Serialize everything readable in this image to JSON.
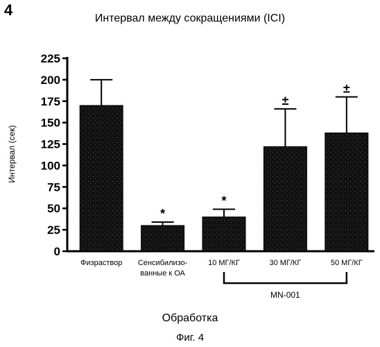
{
  "figure": {
    "panel_number": "4",
    "caption": "Фиг. 4"
  },
  "chart_data": {
    "type": "bar",
    "title": "Интервал между сокращениями (ICI)",
    "xlabel": "Обработка",
    "ylabel": "Интервал (сек)",
    "ylim": [
      0,
      225
    ],
    "yticks": [
      0,
      25,
      50,
      75,
      100,
      125,
      150,
      175,
      200,
      225
    ],
    "categories": [
      [
        "Физраствор"
      ],
      [
        "Сенсибилизо-",
        "ванные к ОА"
      ],
      [
        "10 МГ/КГ"
      ],
      [
        "30 МГ/КГ"
      ],
      [
        "50 МГ/КГ"
      ]
    ],
    "values": [
      170,
      30,
      40,
      122,
      138
    ],
    "errors": [
      30,
      4,
      9,
      44,
      42
    ],
    "significance": [
      "",
      "*",
      "*",
      "±",
      "±"
    ],
    "group_bracket": {
      "label": "MN-001",
      "from_index": 2,
      "to_index": 4
    },
    "bar_color": "#111111",
    "grid": false,
    "legend": "none"
  }
}
